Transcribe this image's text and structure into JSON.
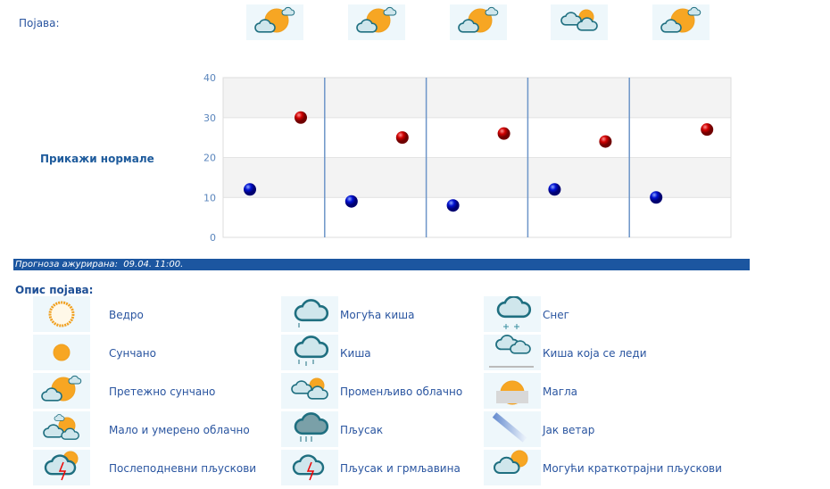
{
  "forecast": {
    "label": "Појава:",
    "icons": [
      "mostly-sunny-icon",
      "mostly-sunny-icon",
      "mostly-sunny-icon",
      "variable-cloudy-icon",
      "mostly-sunny-icon"
    ]
  },
  "show_normals": "Прикажи нормале",
  "chart_data": {
    "type": "scatter",
    "ylim": [
      0,
      40
    ],
    "yticks": [
      "0",
      "10",
      "20",
      "30",
      "40"
    ],
    "grid": true,
    "series": [
      {
        "color": "#0000cc",
        "values": [
          12,
          9,
          8,
          12,
          10
        ]
      },
      {
        "color": "#cc0000",
        "values": [
          30,
          25,
          26,
          24,
          27
        ]
      }
    ]
  },
  "updated": "Прогноза ажурирана:  09.04. 11:00.",
  "legend": {
    "title": "Опис појава:",
    "items": [
      {
        "icon": "clear-icon",
        "label": "Ведро"
      },
      {
        "icon": "sunny-icon",
        "label": "Сунчано"
      },
      {
        "icon": "mostly-sunny-icon",
        "label": "Претежно сунчано"
      },
      {
        "icon": "partly-cloudy-icon",
        "label": "Мало и умерено облачно"
      },
      {
        "icon": "afternoon-showers-icon",
        "label": "Послеподневни пљускови"
      },
      {
        "icon": "chance-rain-icon",
        "label": "Могућа киша"
      },
      {
        "icon": "rain-icon",
        "label": "Киша"
      },
      {
        "icon": "variable-cloudy-icon",
        "label": "Променљиво облачно"
      },
      {
        "icon": "shower-icon",
        "label": "Пљусак"
      },
      {
        "icon": "thunderstorm-icon",
        "label": "Пљусак и грмљавина"
      },
      {
        "icon": "snow-icon",
        "label": "Снег"
      },
      {
        "icon": "freezing-rain-icon",
        "label": "Киша која се леди"
      },
      {
        "icon": "fog-icon",
        "label": "Магла"
      },
      {
        "icon": "strong-wind-icon",
        "label": "Јак ветар"
      },
      {
        "icon": "possible-showers-icon",
        "label": "Могући краткотрајни пљускови"
      }
    ]
  },
  "colors": {
    "accent": "#1c56a0",
    "text": "#2a55a0"
  }
}
